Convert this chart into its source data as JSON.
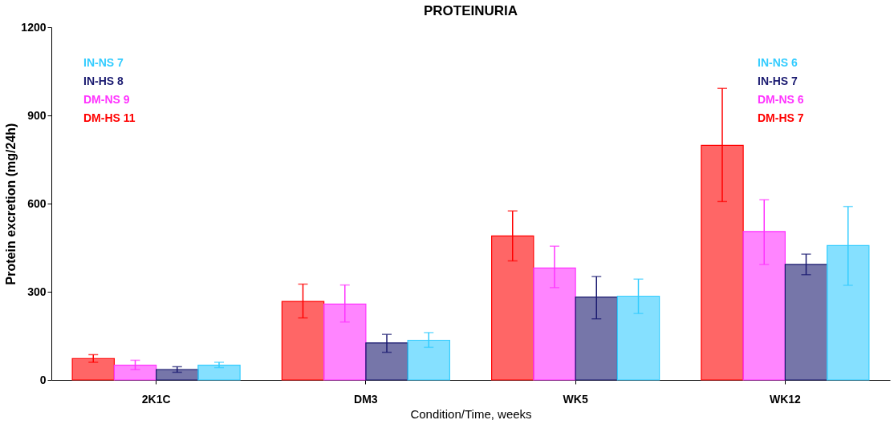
{
  "chart_data": {
    "type": "bar",
    "title": "PROTEINURIA",
    "xlabel": "Condition/Time, weeks",
    "ylabel": "Protein excretion (mg/24h)",
    "categories": [
      "2K1C",
      "DM3",
      "WK5",
      "WK12"
    ],
    "series": [
      {
        "color": "#ff0000",
        "values": [
          73,
          267,
          490,
          798
        ],
        "errors": [
          [
            60,
            86
          ],
          [
            211,
            326
          ],
          [
            405,
            575
          ],
          [
            607,
            992
          ]
        ]
      },
      {
        "color": "#ff33ff",
        "values": [
          50,
          258,
          381,
          505
        ],
        "errors": [
          [
            35,
            67
          ],
          [
            197,
            323
          ],
          [
            314,
            455
          ],
          [
            393,
            613
          ]
        ]
      },
      {
        "color": "#1a1a70",
        "values": [
          35,
          126,
          282,
          393
        ],
        "errors": [
          [
            26,
            45
          ],
          [
            94,
            155
          ],
          [
            208,
            352
          ],
          [
            358,
            428
          ]
        ]
      },
      {
        "color": "#33ccff",
        "values": [
          50,
          135,
          285,
          457
        ],
        "errors": [
          [
            42,
            60
          ],
          [
            111,
            161
          ],
          [
            226,
            343
          ],
          [
            322,
            590
          ]
        ]
      }
    ],
    "ylim": [
      0,
      1200
    ],
    "yticks": [
      0,
      300,
      600,
      900,
      1200
    ],
    "grid": false,
    "legend": false,
    "annotations": [
      "IN-NS 7",
      "IN-HS 8",
      "DM-NS 9",
      "DM-HS 11",
      "IN-NS  6",
      "IN-HS  7",
      "DM-NS  6",
      "DM-HS  7"
    ]
  }
}
